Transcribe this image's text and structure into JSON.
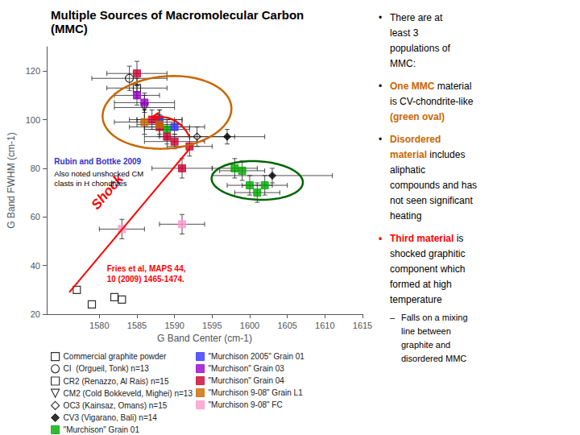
{
  "chart_data": {
    "type": "scatter",
    "title": "Multiple Sources of Macromolecular Carbon",
    "subtitle": "(MMC)",
    "xlabel": "G Band Center (cm-1)",
    "ylabel": "G Band FWHM (cm-1)",
    "xlim": [
      1573,
      1615
    ],
    "ylim": [
      20,
      130
    ],
    "xticks": [
      1580,
      1585,
      1590,
      1595,
      1600,
      1605,
      1610,
      1615
    ],
    "yticks": [
      20,
      40,
      60,
      80,
      100,
      120
    ],
    "grid": false,
    "legend": "bottom",
    "series": [
      {
        "name": "Commercial graphite powder",
        "color": "black",
        "marker": "square-open",
        "x": [
          1577,
          1579,
          1582,
          1583
        ],
        "values": [
          30,
          24,
          27,
          26
        ]
      },
      {
        "name": "CI  (Orgueil, Tonk) n=13",
        "color": "black",
        "marker": "circle-open",
        "x": [
          1584
        ],
        "values": [
          117
        ],
        "x_error": [
          5
        ],
        "y_error": [
          5
        ]
      },
      {
        "name": "CR2 (Renazzo, Al Rais) n=15",
        "color": "black",
        "marker": "square-open",
        "x": [
          1585
        ],
        "values": [
          113
        ],
        "x_error": [
          4
        ],
        "y_error": [
          4
        ]
      },
      {
        "name": "CM2 (Cold Bokkeveld, Mighei) n=13",
        "color": "black",
        "marker": "triangle-down-open",
        "x": [
          1586
        ],
        "values": [
          105
        ],
        "x_error": [
          4
        ],
        "y_error": [
          5
        ]
      },
      {
        "name": "OC3 (Kainsaz, Omans) n=15",
        "color": "black",
        "marker": "diamond-open",
        "x": [
          1593
        ],
        "values": [
          93
        ],
        "x_error": [
          5
        ],
        "y_error": [
          4
        ]
      },
      {
        "name": "CV3 (Vigarano, Bali) n=14",
        "color": "black",
        "marker": "diamond",
        "x": [
          1597
        ],
        "values": [
          93
        ],
        "x_error": [
          5
        ],
        "y_error": [
          3
        ]
      },
      {
        "name": "\"Murchison\" Grain 01",
        "color": "#00aa00",
        "marker": "square",
        "x": [
          1588,
          1589
        ],
        "values": [
          100,
          96
        ],
        "x_error": [
          3,
          3
        ],
        "y_error": [
          4,
          4
        ]
      },
      {
        "name": "\"Murchison 2005\" Grain 01",
        "color": "#3333ff",
        "marker": "square",
        "x": [
          1588,
          1590
        ],
        "values": [
          100,
          97
        ],
        "x_error": [
          3,
          4
        ],
        "y_error": [
          4,
          3
        ]
      },
      {
        "name": "\"Murchison\" Grain 03",
        "color": "#9900cc",
        "marker": "square",
        "x": [
          1585,
          1586
        ],
        "values": [
          110,
          107
        ],
        "x_error": [
          3,
          4
        ],
        "y_error": [
          4,
          4
        ]
      },
      {
        "name": "\"Murchison\" Grain 04",
        "color": "#cc0033",
        "marker": "square",
        "x": [
          1585,
          1587,
          1588,
          1589,
          1590,
          1592,
          1591
        ],
        "values": [
          119,
          100,
          97,
          93,
          91,
          89,
          80
        ],
        "x_error": [
          4,
          3,
          4,
          3,
          4,
          3,
          4
        ],
        "y_error": [
          5,
          4,
          4,
          3,
          3,
          4,
          4
        ]
      },
      {
        "name": "\"Murchison 9-08\" Grain L1",
        "color": "#cc6600",
        "marker": "square",
        "x": [
          1586,
          1588
        ],
        "values": [
          99,
          98
        ],
        "x_error": [
          4,
          3
        ],
        "y_error": [
          5,
          4
        ]
      },
      {
        "name": "\"Murchison 9-08\" FC",
        "color": "#ff99cc",
        "marker": "square",
        "x": [
          1583,
          1591
        ],
        "values": [
          55,
          57
        ],
        "x_error": [
          3,
          3
        ],
        "y_error": [
          4,
          4
        ]
      },
      {
        "name": "\"Murchison\" Grain 01",
        "color": "#00aa00",
        "marker": "square",
        "x": [
          1598,
          1599,
          1600,
          1601,
          1602
        ],
        "values": [
          80,
          79,
          73,
          70,
          73
        ],
        "x_error": [
          3,
          3,
          3,
          3,
          3
        ],
        "y_error": [
          4,
          4,
          4,
          4,
          4
        ]
      },
      {
        "name": "CV3 (Vigarano, Bali) n=14",
        "color": "black",
        "marker": "diamond",
        "x": [
          1603
        ],
        "values": [
          77
        ],
        "x_error": [
          8
        ],
        "y_error": [
          3
        ]
      }
    ],
    "ellipses": [
      {
        "x": 1589,
        "y": 103,
        "width": 17,
        "height": 30,
        "angle": -5,
        "color": "#cc6600"
      },
      {
        "x": 1601,
        "y": 75,
        "width": 12,
        "height": 16,
        "angle": 10,
        "color": "#006600"
      }
    ],
    "arrows": [
      {
        "tail": [
          1592,
          93
        ],
        "head": [
          1587,
          101
        ],
        "color": "red"
      }
    ],
    "lines": [
      {
        "x": [
          1576,
          1592
        ],
        "values": [
          29,
          88
        ],
        "color": "red",
        "label": "Shock",
        "label_x": 1580,
        "label_y": 62
      }
    ],
    "annotations": [
      {
        "text": "Fries et al, MAPS 44,\n10 (2009) 1465-1474.",
        "x": 1581,
        "y": 38,
        "color": "red"
      },
      {
        "text": "Rubin and Bottke 2009",
        "x": 1574,
        "y": 82,
        "color": "#3333cc"
      },
      {
        "text": "Also noted unshocked CM\nclasts in H chondrites",
        "x": 1574,
        "y": 77,
        "color": "black"
      }
    ],
    "side_text": [
      {
        "bullet": "•",
        "color": "black",
        "lines": [
          [
            {
              "text": "There are at",
              "color": "black"
            }
          ],
          [
            {
              "text": "least 3",
              "color": "black"
            }
          ],
          [
            {
              "text": "populations of",
              "color": "black"
            }
          ],
          [
            {
              "text": "MMC:",
              "color": "black"
            }
          ]
        ]
      },
      {
        "bullet": "•",
        "color": "black",
        "lines": [
          [
            {
              "text": "One MMC",
              "color": "#cc6600"
            },
            {
              "text": "material",
              "color": "black"
            }
          ],
          [
            {
              "text": "is CV-chondrite-like",
              "color": "black"
            }
          ],
          [
            {
              "text": "(green oval)",
              "color": "#cc6600"
            }
          ]
        ]
      },
      {
        "bullet": "•",
        "color": "black",
        "lines": [
          [
            {
              "text": "Disordered",
              "color": "#cc6600"
            }
          ],
          [
            {
              "text": "material",
              "color": "#cc6600"
            },
            {
              "text": "includes",
              "color": "black"
            }
          ],
          [
            {
              "text": "aliphatic",
              "color": "black"
            }
          ],
          [
            {
              "text": "compounds and has",
              "color": "black"
            }
          ],
          [
            {
              "text": "not seen significant",
              "color": "black"
            }
          ],
          [
            {
              "text": "heating",
              "color": "black"
            }
          ]
        ]
      },
      {
        "bullet": "•",
        "color": "red",
        "lines": [
          [
            {
              "text": "Third material",
              "color": "red"
            },
            {
              "text": "is",
              "color": "black"
            }
          ],
          [
            {
              "text": "shocked graphitic",
              "color": "black"
            }
          ],
          [
            {
              "text": "component which",
              "color": "black"
            }
          ],
          [
            {
              "text": "formed at high",
              "color": "black"
            }
          ],
          [
            {
              "text": "temperature",
              "color": "black"
            }
          ]
        ],
        "sub_items": [
          {
            "bullet": "–",
            "color": "black",
            "lines": [
              [
                {
                  "text": "Falls on a mixing",
                  "color": "black"
                }
              ],
              [
                {
                  "text": "line between",
                  "color": "black"
                }
              ],
              [
                {
                  "text": "graphite and",
                  "color": "black"
                }
              ],
              [
                {
                  "text": "disordered MMC",
                  "color": "black"
                }
              ]
            ]
          }
        ]
      }
    ]
  }
}
